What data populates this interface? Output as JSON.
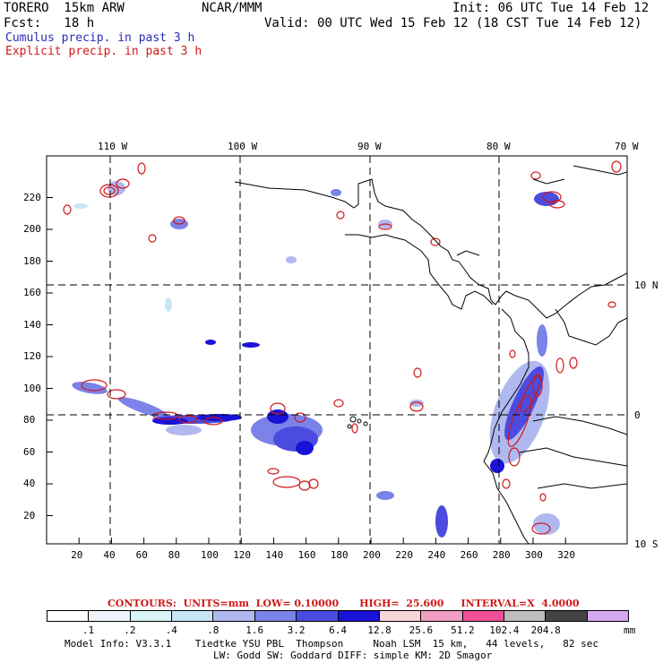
{
  "header": {
    "model": "TORERO  15km ARW",
    "org": "NCAR/MMM",
    "init": "Init: 06 UTC Tue 14 Feb 12",
    "fcst": "Fcst:   18 h",
    "valid": "Valid: 00 UTC Wed 15 Feb 12 (18 CST Tue 14 Feb 12)",
    "field1": "Cumulus precip. in past 3 h",
    "field2": "Explicit precip. in past 3 h"
  },
  "map": {
    "lon_labels": [
      "110 W",
      "100 W",
      "90 W",
      "80 W",
      "70 W"
    ],
    "lat_labels_right": [
      "10 N",
      "0",
      "10 S"
    ],
    "x_ticks": [
      "20",
      "40",
      "60",
      "80",
      "100",
      "120",
      "140",
      "160",
      "180",
      "200",
      "220",
      "240",
      "260",
      "280",
      "300",
      "320"
    ],
    "y_ticks": [
      "20",
      "40",
      "60",
      "80",
      "100",
      "120",
      "140",
      "160",
      "180",
      "200",
      "220"
    ]
  },
  "contours": {
    "label": "CONTOURS:  UNITS=mm  LOW= 0.10000      HIGH=  25.600     INTERVAL=X  4.0000"
  },
  "colorbar": {
    "levels": [
      ".1",
      ".2",
      ".4",
      ".8",
      "1.6",
      "3.2",
      "6.4",
      "12.8",
      "25.6",
      "51.2",
      "102.4",
      "204.8"
    ],
    "units": "mm",
    "colors": [
      "#ffffff",
      "#eef2fb",
      "#d9f4f6",
      "#c6e6f7",
      "#b0b8f0",
      "#7b82e8",
      "#4b4be0",
      "#1a12d8",
      "#f7d7d6",
      "#f29dc2",
      "#f04f9a",
      "#bdbdbd",
      "#444444",
      "#d6a8f0"
    ]
  },
  "footer": {
    "line1": "Model Info: V3.3.1    Tiedtke YSU PBL  Thompson     Noah LSM  15 km,   44 levels,   82 sec",
    "line2": "LW: Godd SW: Goddard DIFF: simple KM: 2D Smagor"
  }
}
